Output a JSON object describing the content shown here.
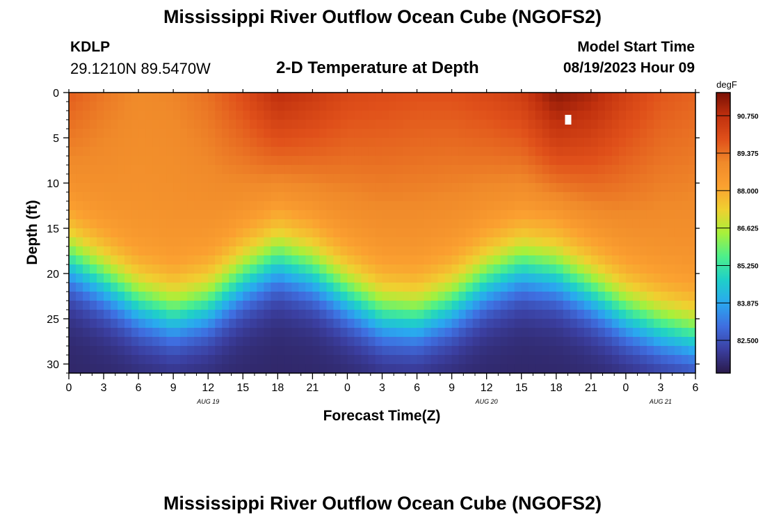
{
  "header": {
    "main_title": "Mississippi River Outflow Ocean Cube (NGOFS2)",
    "station_id": "KDLP",
    "station_coords": "29.1210N  89.5470W",
    "subtitle": "2-D Temperature at Depth",
    "model_start_label": "Model Start Time",
    "model_start_value": "08/19/2023 Hour 09"
  },
  "footer": {
    "title": "Mississippi River Outflow Ocean Cube (NGOFS2)"
  },
  "chart_data": {
    "type": "heatmap",
    "title": "2-D Temperature at Depth",
    "xlabel": "Forecast Time(Z)",
    "ylabel": "Depth (ft)",
    "x_range_hours": [
      0,
      54
    ],
    "y_range_ft": [
      0,
      31
    ],
    "x_tick_labels": [
      "0",
      "3",
      "6",
      "9",
      "12",
      "15",
      "18",
      "21",
      "0",
      "3",
      "6",
      "9",
      "12",
      "15",
      "18",
      "21",
      "0",
      "3",
      "6"
    ],
    "y_tick_values": [
      0,
      5,
      10,
      15,
      20,
      25,
      30
    ],
    "y_tick_labels": [
      "0",
      "5",
      "10",
      "15",
      "20",
      "25",
      "30"
    ],
    "date_labels": [
      {
        "text": "AUG 19",
        "hour": 12
      },
      {
        "text": "AUG 20",
        "hour": 36
      },
      {
        "text": "AUG 21",
        "hour": 51
      }
    ],
    "colorbar": {
      "unit": "degF",
      "min": 81.3,
      "max": 91.6,
      "tick_values": [
        90.75,
        89.375,
        88.0,
        86.625,
        85.25,
        83.875,
        82.5
      ],
      "tick_labels": [
        "90.750",
        "89.375",
        "88.000",
        "86.625",
        "85.250",
        "83.875",
        "82.500"
      ],
      "colors": [
        "#2a1a4a",
        "#3b3fa0",
        "#3f6ee0",
        "#2aa8f0",
        "#1fd0c8",
        "#4ef08a",
        "#a8f03a",
        "#f0d030",
        "#fba030",
        "#f08a2a",
        "#e0501a",
        "#c0300e",
        "#7a1004"
      ]
    },
    "thermocline_depth_samples": {
      "hours": [
        0,
        3,
        6,
        9,
        12,
        15,
        18,
        21,
        24,
        27,
        30,
        33,
        36,
        39,
        42,
        45,
        48,
        51,
        54
      ],
      "depth_ft": [
        14.5,
        16.8,
        19.3,
        20.6,
        19.5,
        16.6,
        14.5,
        15.8,
        18.4,
        20.6,
        21.0,
        19.4,
        16.8,
        15.2,
        15.9,
        18.0,
        20.4,
        22.0,
        23.0
      ]
    },
    "surface_temperature_degF": {
      "description_values": [
        89.7,
        89.3,
        89.0,
        89.1,
        89.4,
        90.0,
        90.8,
        90.5,
        90.1,
        90.0,
        89.9,
        89.9,
        90.1,
        90.4,
        91.4,
        91.0,
        90.3,
        89.8,
        89.6
      ]
    },
    "annotations": [
      {
        "type": "marker",
        "hour": 43,
        "depth_ft": 3.0,
        "color": "#ffffff"
      }
    ]
  }
}
